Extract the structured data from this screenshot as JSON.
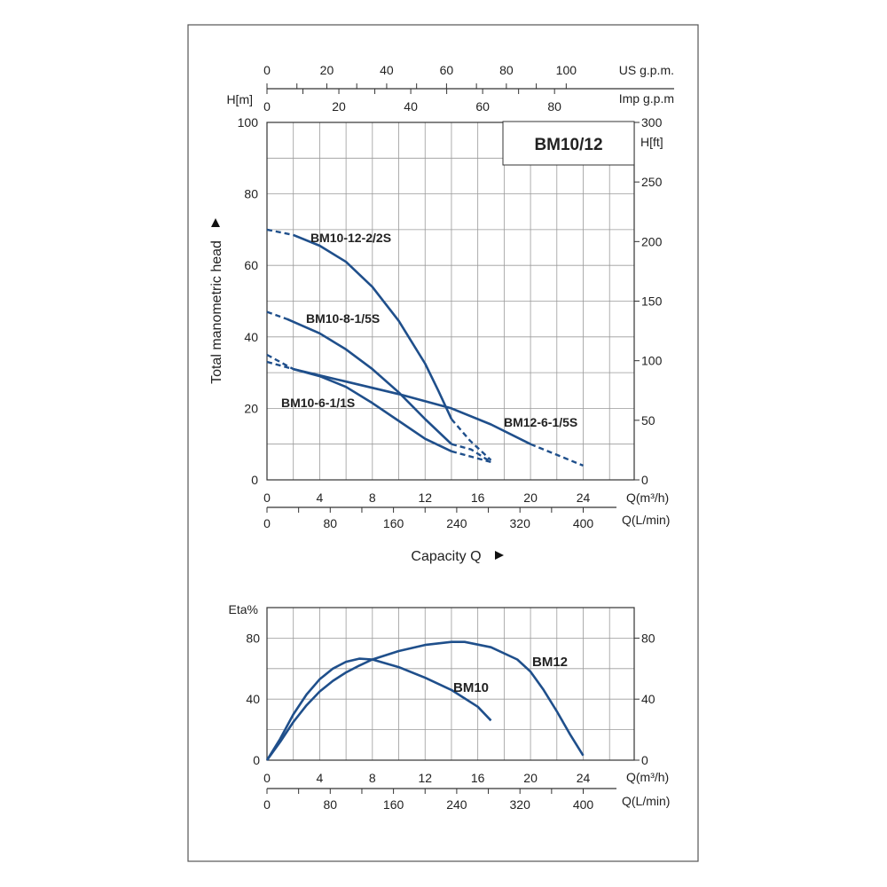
{
  "chart_data": [
    {
      "type": "line",
      "title": "BM10/12",
      "ylabel": "Total manometric head",
      "y_unit": "H[m]",
      "ylim": [
        0,
        100
      ],
      "y_ticks": [
        0,
        20,
        40,
        60,
        80,
        100
      ],
      "y2_unit": "H[ft]",
      "y2lim": [
        0,
        300
      ],
      "y2_ticks": [
        0,
        50,
        100,
        150,
        200,
        250,
        300
      ],
      "xlabel": "Capacity Q",
      "x_unit": "Q(m³/h)",
      "xlim": [
        0,
        24
      ],
      "x_ticks": [
        0,
        4,
        8,
        12,
        16,
        20,
        24
      ],
      "x2_unit": "Q(L/min)",
      "x2_ticks": [
        0,
        80,
        160,
        240,
        320,
        400
      ],
      "top1_unit": "US g.p.m.",
      "top1_ticks": [
        0,
        20,
        40,
        60,
        80,
        100
      ],
      "top2_unit": "Imp g.p.m",
      "top2_ticks": [
        0,
        20,
        40,
        60,
        80
      ],
      "grid": true,
      "series": [
        {
          "name": "BM10-12-2/2S",
          "solid": [
            [
              2,
              68.5
            ],
            [
              4,
              65.5
            ],
            [
              6,
              61.0
            ],
            [
              8,
              54.0
            ],
            [
              10,
              44.5
            ],
            [
              12,
              32.5
            ],
            [
              13,
              25.0
            ],
            [
              14,
              17.0
            ]
          ],
          "dashed": [
            [
              0,
              70
            ],
            [
              2,
              68.5
            ]
          ],
          "dashed_end": [
            [
              14,
              17.0
            ],
            [
              15.4,
              11.0
            ],
            [
              17.0,
              5.5
            ]
          ]
        },
        {
          "name": "BM10-8-1/5S",
          "solid": [
            [
              1.5,
              45.0
            ],
            [
              4,
              41.0
            ],
            [
              6,
              36.5
            ],
            [
              8,
              31.0
            ],
            [
              10,
              24.5
            ],
            [
              12,
              17.0
            ],
            [
              14,
              10.0
            ]
          ],
          "dashed": [
            [
              0,
              47
            ],
            [
              1.5,
              45.0
            ]
          ],
          "dashed_end": [
            [
              14,
              10.0
            ],
            [
              15.5,
              8.5
            ],
            [
              17.0,
              5.0
            ]
          ]
        },
        {
          "name": "BM10-6-1/1S",
          "solid": [
            [
              2,
              31.0
            ],
            [
              4,
              29.0
            ],
            [
              6,
              26.0
            ],
            [
              8,
              21.5
            ],
            [
              10,
              16.5
            ],
            [
              12,
              11.5
            ],
            [
              14,
              8.0
            ]
          ],
          "dashed": [
            [
              0,
              35
            ],
            [
              2,
              31.0
            ]
          ],
          "dashed_end": [
            [
              14,
              8.0
            ],
            [
              17.0,
              5.0
            ]
          ]
        },
        {
          "name": "BM12-6-1/5S",
          "solid": [
            [
              2,
              31.0
            ],
            [
              6,
              27.5
            ],
            [
              10,
              24.0
            ],
            [
              14,
              20.0
            ],
            [
              17,
              15.5
            ],
            [
              20,
              10.0
            ]
          ],
          "dashed": [
            [
              0,
              33
            ],
            [
              2,
              31.0
            ]
          ],
          "dashed_end": [
            [
              20,
              10.0
            ],
            [
              24,
              4.0
            ]
          ]
        }
      ]
    },
    {
      "type": "line",
      "ylabel": "Eta%",
      "ylim": [
        0,
        100
      ],
      "y_ticks": [
        0,
        40,
        80
      ],
      "y2_ticks": [
        0,
        40,
        80
      ],
      "x_unit": "Q(m³/h)",
      "xlim": [
        0,
        24
      ],
      "x_ticks": [
        0,
        4,
        8,
        12,
        16,
        20,
        24
      ],
      "x2_unit": "Q(L/min)",
      "x2_ticks": [
        0,
        80,
        160,
        240,
        320,
        400
      ],
      "grid": true,
      "series": [
        {
          "name": "BM10",
          "points": [
            [
              0,
              0
            ],
            [
              1,
              14
            ],
            [
              2,
              30
            ],
            [
              3,
              43
            ],
            [
              4,
              53
            ],
            [
              5,
              60
            ],
            [
              6,
              64.5
            ],
            [
              7,
              66.5
            ],
            [
              8,
              66
            ],
            [
              10,
              61
            ],
            [
              12,
              54
            ],
            [
              14,
              46
            ],
            [
              16,
              35
            ],
            [
              17,
              26
            ]
          ]
        },
        {
          "name": "BM12",
          "points": [
            [
              0,
              0
            ],
            [
              1,
              12
            ],
            [
              2,
              25
            ],
            [
              3,
              36
            ],
            [
              4,
              45
            ],
            [
              5,
              52
            ],
            [
              6,
              57.5
            ],
            [
              7,
              62
            ],
            [
              8,
              66
            ],
            [
              10,
              71.5
            ],
            [
              12,
              75.5
            ],
            [
              14,
              77.5
            ],
            [
              15,
              77.5
            ],
            [
              17,
              74
            ],
            [
              19,
              66
            ],
            [
              20,
              58
            ],
            [
              21,
              46
            ],
            [
              22,
              32
            ],
            [
              23,
              17
            ],
            [
              24,
              3
            ]
          ]
        }
      ]
    }
  ]
}
